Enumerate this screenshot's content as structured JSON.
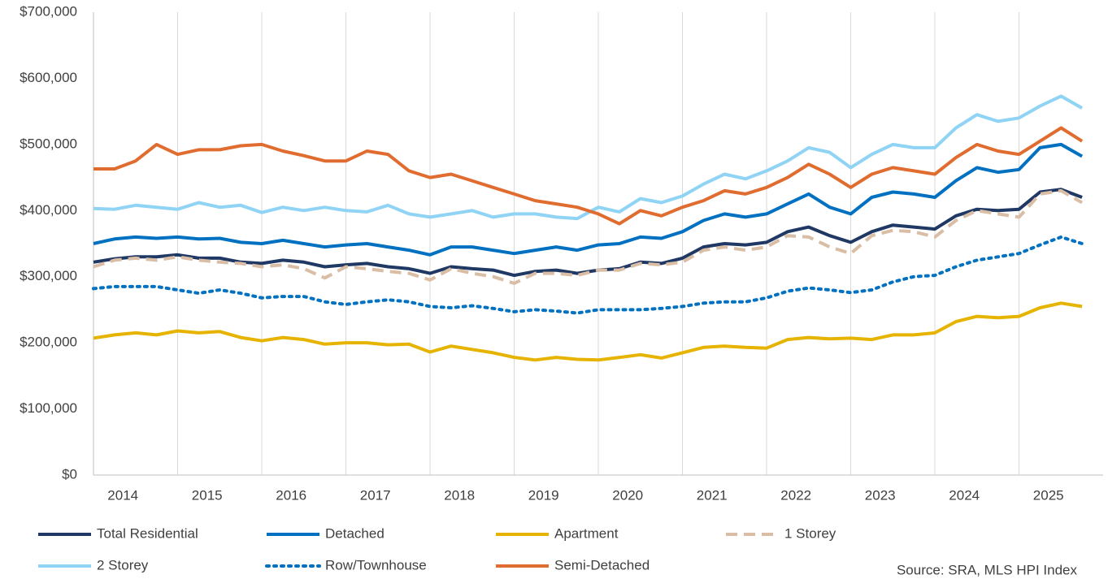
{
  "chart_data": {
    "type": "line",
    "source": "Source: SRA, MLS HPI Index",
    "x": [
      2014,
      2014.25,
      2014.5,
      2014.75,
      2015,
      2015.25,
      2015.5,
      2015.75,
      2016,
      2016.25,
      2016.5,
      2016.75,
      2017,
      2017.25,
      2017.5,
      2017.75,
      2018,
      2018.25,
      2018.5,
      2018.75,
      2019,
      2019.25,
      2019.5,
      2019.75,
      2020,
      2020.25,
      2020.5,
      2020.75,
      2021,
      2021.25,
      2021.5,
      2021.75,
      2022,
      2022.25,
      2022.5,
      2022.75,
      2023,
      2023.25,
      2023.5,
      2023.75,
      2024,
      2024.25,
      2024.5,
      2024.75,
      2025,
      2025.25,
      2025.5,
      2025.75
    ],
    "xlim": [
      2014,
      2026
    ],
    "xticks": [
      {
        "value": 2014.35,
        "label": "2014"
      },
      {
        "value": 2015.35,
        "label": "2015"
      },
      {
        "value": 2016.35,
        "label": "2016"
      },
      {
        "value": 2017.35,
        "label": "2017"
      },
      {
        "value": 2018.35,
        "label": "2018"
      },
      {
        "value": 2019.35,
        "label": "2019"
      },
      {
        "value": 2020.35,
        "label": "2020"
      },
      {
        "value": 2021.35,
        "label": "2021"
      },
      {
        "value": 2022.35,
        "label": "2022"
      },
      {
        "value": 2023.35,
        "label": "2023"
      },
      {
        "value": 2024.35,
        "label": "2024"
      },
      {
        "value": 2025.35,
        "label": "2025"
      }
    ],
    "xgrid": [
      2015,
      2016,
      2017,
      2018,
      2019,
      2020,
      2021,
      2022,
      2023,
      2024,
      2025
    ],
    "ylim": [
      0,
      700000
    ],
    "yticks": [
      {
        "value": 0,
        "label": "$0"
      },
      {
        "value": 100000,
        "label": "$100,000"
      },
      {
        "value": 200000,
        "label": "$200,000"
      },
      {
        "value": 300000,
        "label": "$300,000"
      },
      {
        "value": 400000,
        "label": "$400,000"
      },
      {
        "value": 500000,
        "label": "$500,000"
      },
      {
        "value": 600000,
        "label": "$600,000"
      },
      {
        "value": 700000,
        "label": "$700,000"
      }
    ],
    "series": [
      {
        "name": "Total Residential",
        "color": "#1f3864",
        "dash": "solid",
        "values": [
          322000,
          327000,
          330000,
          330000,
          333000,
          328000,
          328000,
          322000,
          320000,
          325000,
          322000,
          315000,
          318000,
          320000,
          315000,
          312000,
          305000,
          315000,
          312000,
          310000,
          302000,
          308000,
          310000,
          305000,
          310000,
          312000,
          322000,
          320000,
          328000,
          345000,
          350000,
          348000,
          352000,
          368000,
          375000,
          362000,
          352000,
          368000,
          378000,
          375000,
          372000,
          392000,
          402000,
          400000,
          402000,
          428000,
          432000,
          420000
        ]
      },
      {
        "name": "Detached",
        "color": "#0070c0",
        "dash": "solid",
        "values": [
          350000,
          357000,
          360000,
          358000,
          360000,
          357000,
          358000,
          352000,
          350000,
          355000,
          350000,
          345000,
          348000,
          350000,
          345000,
          340000,
          333000,
          345000,
          345000,
          340000,
          335000,
          340000,
          345000,
          340000,
          348000,
          350000,
          360000,
          358000,
          368000,
          385000,
          395000,
          390000,
          395000,
          410000,
          425000,
          405000,
          395000,
          420000,
          428000,
          425000,
          420000,
          445000,
          465000,
          458000,
          462000,
          495000,
          500000,
          482000
        ]
      },
      {
        "name": "Apartment",
        "color": "#e6b400",
        "dash": "solid",
        "values": [
          207000,
          212000,
          215000,
          212000,
          218000,
          215000,
          217000,
          208000,
          203000,
          208000,
          205000,
          198000,
          200000,
          200000,
          197000,
          198000,
          186000,
          195000,
          190000,
          185000,
          178000,
          174000,
          178000,
          175000,
          174000,
          178000,
          182000,
          177000,
          185000,
          193000,
          195000,
          193000,
          192000,
          205000,
          208000,
          206000,
          207000,
          205000,
          212000,
          212000,
          215000,
          232000,
          240000,
          238000,
          240000,
          253000,
          260000,
          255000
        ]
      },
      {
        "name": "1 Storey",
        "color": "#d9bda5",
        "dash": "dashed",
        "values": [
          315000,
          325000,
          328000,
          325000,
          330000,
          325000,
          322000,
          320000,
          315000,
          318000,
          312000,
          298000,
          315000,
          312000,
          308000,
          305000,
          295000,
          312000,
          305000,
          300000,
          290000,
          305000,
          305000,
          302000,
          310000,
          310000,
          320000,
          318000,
          322000,
          340000,
          345000,
          340000,
          345000,
          362000,
          360000,
          345000,
          335000,
          362000,
          370000,
          368000,
          360000,
          385000,
          400000,
          395000,
          390000,
          425000,
          430000,
          412000
        ]
      },
      {
        "name": "2 Storey",
        "color": "#8fd3f5",
        "dash": "solid",
        "values": [
          403000,
          402000,
          408000,
          405000,
          402000,
          412000,
          405000,
          408000,
          397000,
          405000,
          400000,
          405000,
          400000,
          398000,
          408000,
          395000,
          390000,
          395000,
          400000,
          390000,
          395000,
          395000,
          390000,
          388000,
          405000,
          398000,
          418000,
          412000,
          422000,
          440000,
          455000,
          448000,
          460000,
          475000,
          495000,
          488000,
          465000,
          485000,
          500000,
          495000,
          495000,
          525000,
          545000,
          535000,
          540000,
          558000,
          573000,
          555000
        ]
      },
      {
        "name": "Row/Townhouse",
        "color": "#0070c0",
        "dash": "dotted",
        "values": [
          282000,
          285000,
          285000,
          285000,
          280000,
          275000,
          280000,
          275000,
          268000,
          270000,
          270000,
          262000,
          258000,
          262000,
          265000,
          262000,
          255000,
          253000,
          256000,
          252000,
          247000,
          250000,
          248000,
          245000,
          250000,
          250000,
          250000,
          252000,
          255000,
          260000,
          262000,
          262000,
          268000,
          278000,
          283000,
          280000,
          276000,
          280000,
          292000,
          300000,
          302000,
          315000,
          325000,
          330000,
          335000,
          348000,
          360000,
          350000
        ]
      },
      {
        "name": "Semi-Detached",
        "color": "#e06c30",
        "dash": "solid",
        "values": [
          463000,
          463000,
          475000,
          500000,
          485000,
          492000,
          492000,
          498000,
          500000,
          490000,
          483000,
          475000,
          475000,
          490000,
          485000,
          460000,
          450000,
          455000,
          445000,
          435000,
          425000,
          415000,
          410000,
          405000,
          395000,
          380000,
          400000,
          392000,
          405000,
          415000,
          430000,
          425000,
          435000,
          450000,
          470000,
          455000,
          435000,
          455000,
          465000,
          460000,
          455000,
          480000,
          500000,
          490000,
          485000,
          505000,
          525000,
          505000
        ]
      }
    ]
  }
}
